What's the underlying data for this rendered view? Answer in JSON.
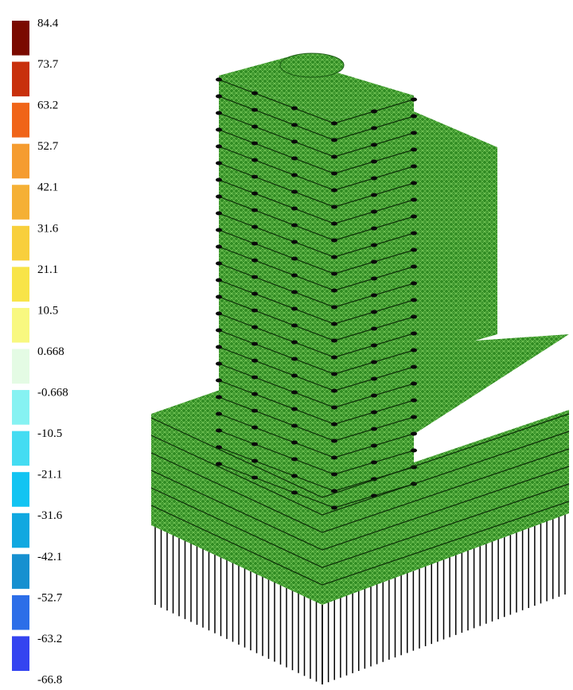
{
  "legend": {
    "labels": [
      "84.4",
      "73.7",
      "63.2",
      "52.7",
      "42.1",
      "31.6",
      "21.1",
      "10.5",
      "0.668",
      "-0.668",
      "-10.5",
      "-21.1",
      "-31.6",
      "-42.1",
      "-52.7",
      "-63.2",
      "-66.8"
    ],
    "colors": [
      "#7a0a00",
      "#c8300c",
      "#f06418",
      "#f59c30",
      "#f5b035",
      "#f8cf3c",
      "#f8e448",
      "#f8f880",
      "#e4fbe4",
      "#86f2f2",
      "#44dcf2",
      "#12c4f2",
      "#10a8e0",
      "#1690d0",
      "#2c6ee8",
      "#3444f0"
    ]
  }
}
